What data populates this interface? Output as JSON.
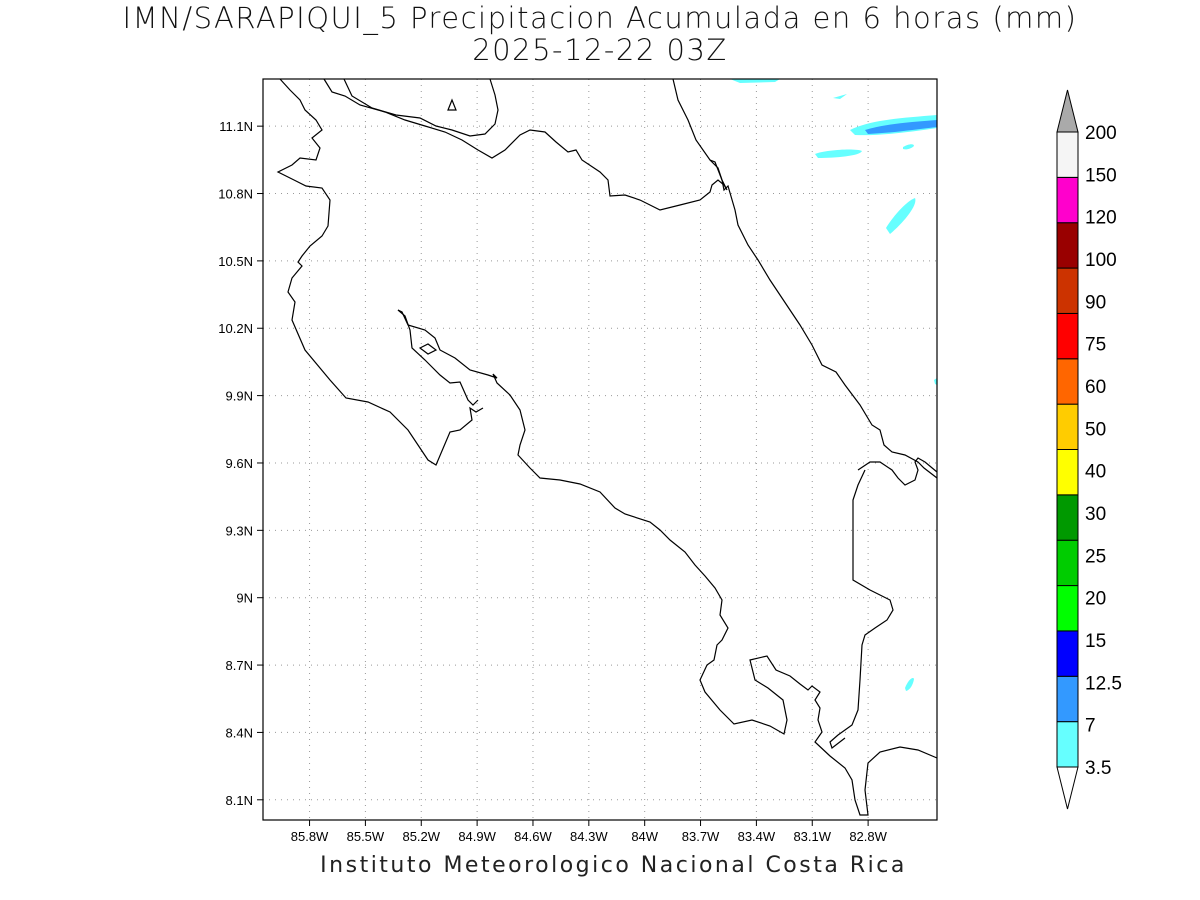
{
  "title_line1": "IMN/SARAPIQUI_5 Precipitacion Acumulada en 6 horas (mm)",
  "title_line2": "2025-12-22 03Z",
  "footer": "Instituto Meteorologico Nacional Costa Rica",
  "map": {
    "lon_range": [
      -86.05,
      -82.43
    ],
    "lat_range": [
      8.01,
      11.31
    ],
    "lon_ticks": [
      "85.8W",
      "85.5W",
      "85.2W",
      "84.9W",
      "84.6W",
      "84.3W",
      "84W",
      "83.7W",
      "83.4W",
      "83.1W",
      "82.8W"
    ],
    "lat_ticks": [
      "11.1N",
      "10.8N",
      "10.5N",
      "10.2N",
      "9.9N",
      "9.6N",
      "9.3N",
      "9N",
      "8.7N",
      "8.4N",
      "8.1N"
    ],
    "grid": "dotted"
  },
  "colorbar": {
    "levels": [
      "3.5",
      "7",
      "12.5",
      "15",
      "20",
      "25",
      "30",
      "40",
      "50",
      "60",
      "75",
      "90",
      "100",
      "120",
      "150",
      "200"
    ],
    "colors": [
      "#66ffff",
      "#3399ff",
      "#0000ff",
      "#00ff00",
      "#00cc00",
      "#009900",
      "#ffff00",
      "#ffcc00",
      "#ff6600",
      "#ff0000",
      "#cc3300",
      "#990000",
      "#ff00cc",
      "#9933cc",
      "#f5f5f5",
      "#aaaaaa"
    ]
  }
}
